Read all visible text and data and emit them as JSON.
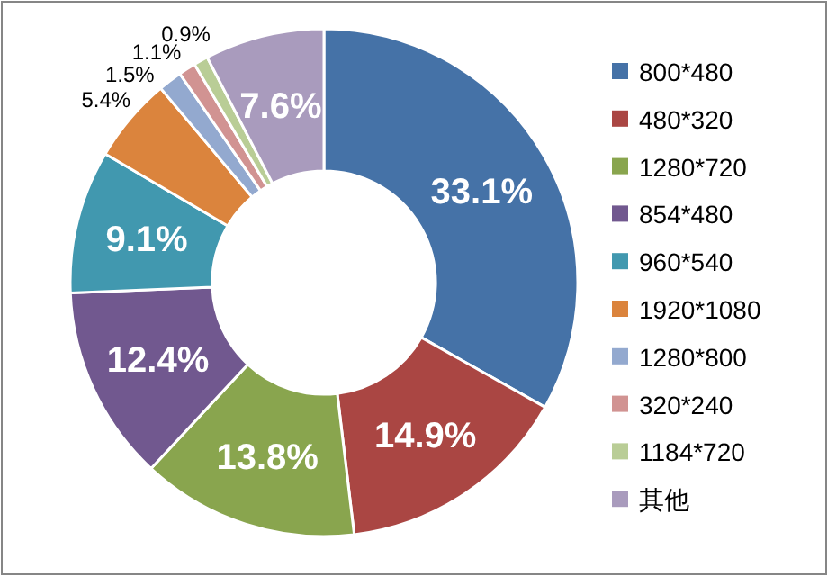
{
  "chart_data": {
    "type": "donut",
    "categories": [
      "800*480",
      "480*320",
      "1280*720",
      "854*480",
      "960*540",
      "1920*1080",
      "1280*800",
      "320*240",
      "1184*720",
      "其他"
    ],
    "values": [
      33.1,
      14.9,
      13.8,
      12.4,
      9.1,
      5.4,
      1.5,
      1.1,
      0.9,
      7.6
    ],
    "value_labels": [
      "33.1%",
      "14.9%",
      "13.8%",
      "12.4%",
      "9.1%",
      "5.4%",
      "1.5%",
      "1.1%",
      "0.9%",
      "7.6%"
    ],
    "colors": [
      "#4572a7",
      "#aa4643",
      "#89a54e",
      "#71588f",
      "#4198af",
      "#db843d",
      "#93a9cf",
      "#d19392",
      "#b9cd96",
      "#a99bbd"
    ],
    "legend": "right"
  }
}
